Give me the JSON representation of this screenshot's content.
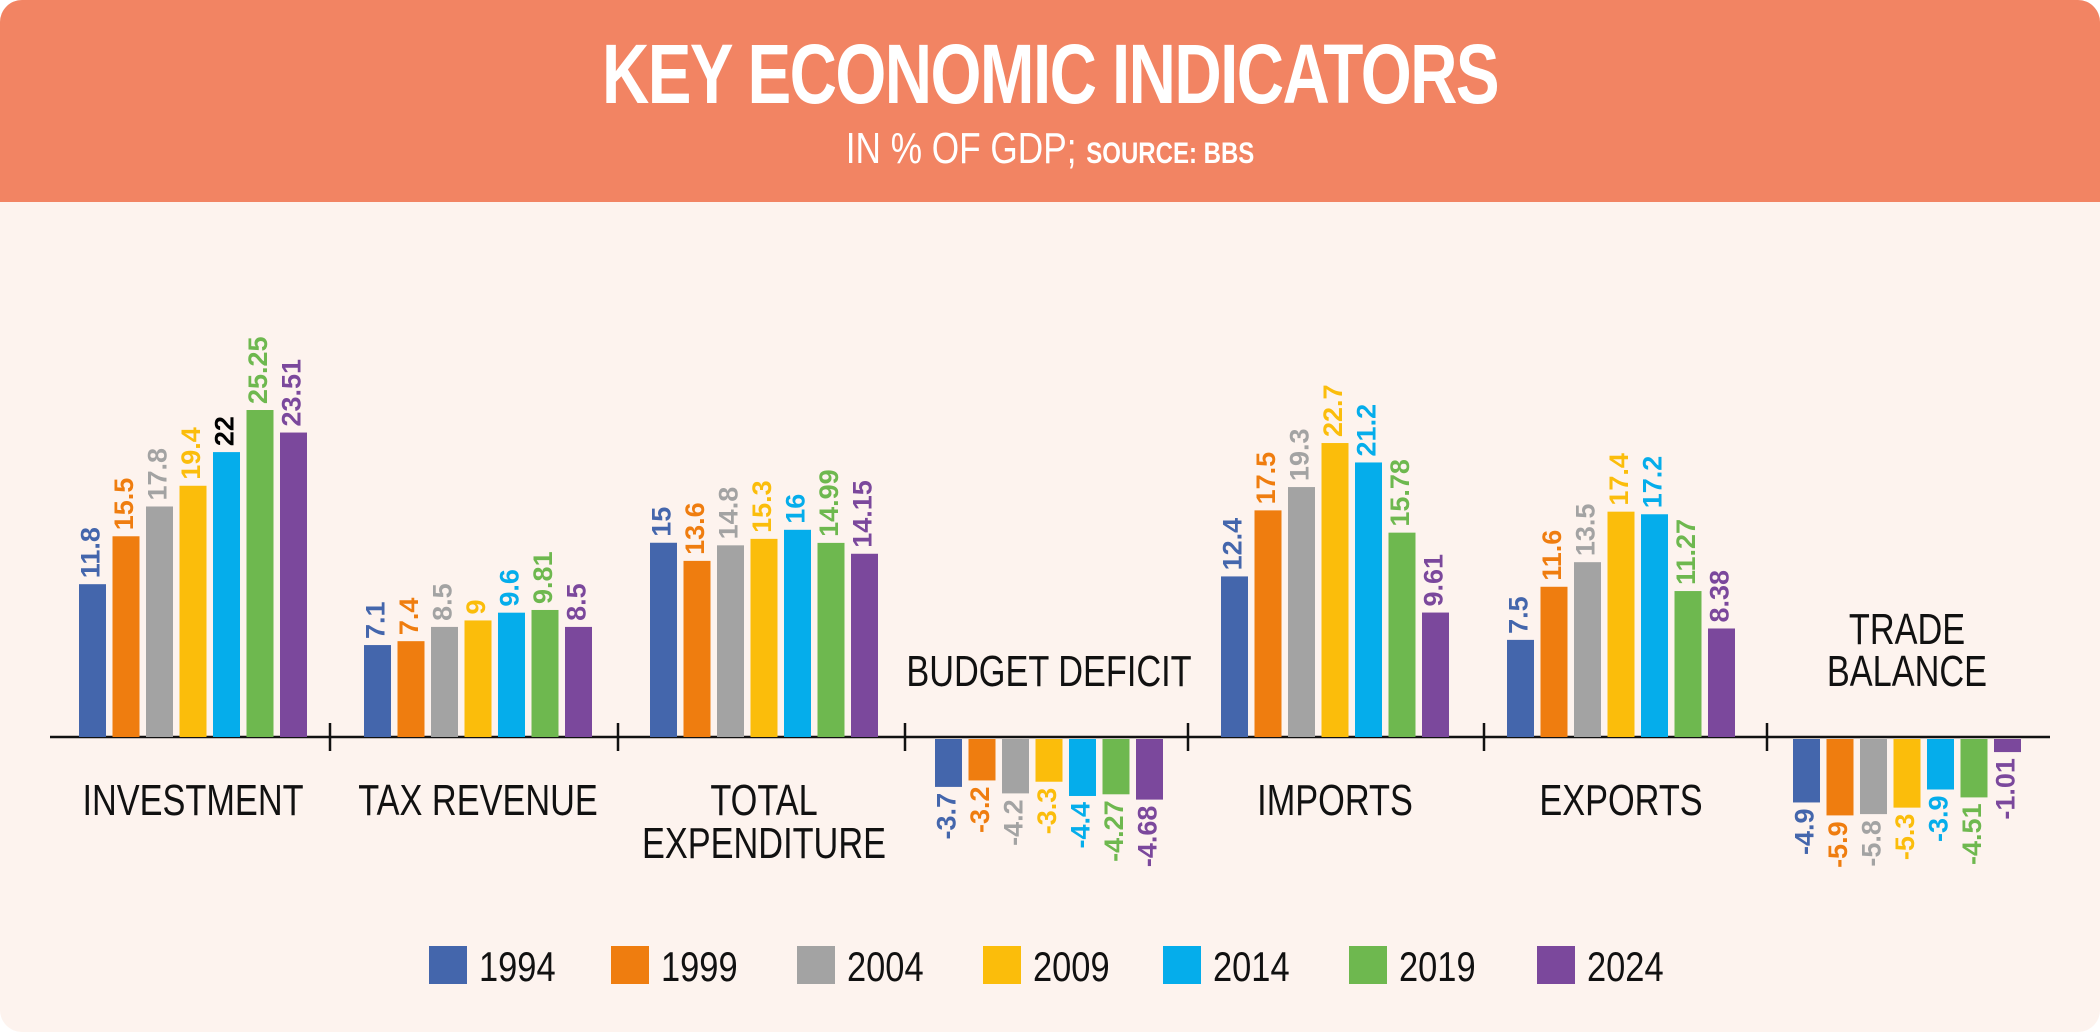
{
  "header": {
    "title": "KEY ECONOMIC INDICATORS",
    "subtitle_main": "IN % OF GDP; ",
    "subtitle_source": "SOURCE: BBS"
  },
  "colors": {
    "1994": "#4466ac",
    "1999": "#ef7d0f",
    "2004": "#a3a3a3",
    "2009": "#fbbd0b",
    "2014": "#05adeb",
    "2019": "#6eb84f",
    "2024": "#7b489c",
    "header_bg": "#f28463",
    "panel_bg": "#fdf3ee"
  },
  "chart_data": {
    "type": "bar",
    "title": "KEY ECONOMIC INDICATORS",
    "subtitle": "IN % OF GDP; SOURCE: BBS",
    "legend_position": "bottom",
    "grid": false,
    "series_names": [
      "1994",
      "1999",
      "2004",
      "2009",
      "2014",
      "2019",
      "2024"
    ],
    "groups": [
      {
        "label_lines": [
          "INVESTMENT"
        ],
        "values": [
          11.8,
          15.5,
          17.8,
          19.4,
          22,
          25.25,
          23.51
        ],
        "labels": [
          "11.8",
          "15.5",
          "17.8",
          "19.4",
          "22",
          "25.25",
          "23.51"
        ]
      },
      {
        "label_lines": [
          "TAX REVENUE"
        ],
        "values": [
          7.1,
          7.4,
          8.5,
          9,
          9.6,
          9.81,
          8.5
        ],
        "labels": [
          "7.1",
          "7.4",
          "8.5",
          "9",
          "9.6",
          "9.81",
          "8.5"
        ]
      },
      {
        "label_lines": [
          "TOTAL",
          "EXPENDITURE"
        ],
        "values": [
          15,
          13.6,
          14.8,
          15.3,
          16,
          14.99,
          14.15
        ],
        "labels": [
          "15",
          "13.6",
          "14.8",
          "15.3",
          "16",
          "14.99",
          "14.15"
        ]
      },
      {
        "label_lines": [
          "BUDGET DEFICIT"
        ],
        "values": [
          -3.7,
          -3.2,
          -4.2,
          -3.3,
          -4.4,
          -4.27,
          -4.68
        ],
        "labels": [
          "-3.7",
          "-3.2",
          "-4.2",
          "-3.3",
          "-4.4",
          "-4.27",
          "-4.68"
        ]
      },
      {
        "label_lines": [
          "IMPORTS"
        ],
        "values": [
          12.4,
          17.5,
          19.3,
          22.7,
          21.2,
          15.78,
          9.61
        ],
        "labels": [
          "12.4",
          "17.5",
          "19.3",
          "22.7",
          "21.2",
          "15.78",
          "9.61"
        ]
      },
      {
        "label_lines": [
          "EXPORTS"
        ],
        "values": [
          7.5,
          11.6,
          13.5,
          17.4,
          17.2,
          11.27,
          8.38
        ],
        "labels": [
          "7.5",
          "11.6",
          "13.5",
          "17.4",
          "17.2",
          "11.27",
          "8.38"
        ]
      },
      {
        "label_lines": [
          "TRADE",
          "BALANCE"
        ],
        "values": [
          -4.9,
          -5.9,
          -5.8,
          -5.3,
          -3.9,
          -4.51,
          -1.01
        ],
        "labels": [
          "-4.9",
          "-5.9",
          "-5.8",
          "-5.3",
          "-3.9",
          "-4.51",
          "-1.01"
        ]
      }
    ]
  }
}
